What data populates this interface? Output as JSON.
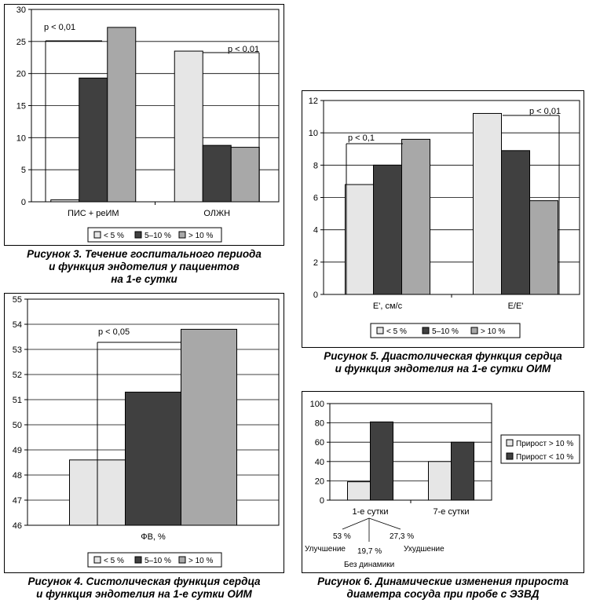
{
  "colors": {
    "light": "#e6e6e6",
    "dark": "#404040",
    "mid": "#a8a8a8",
    "axis": "#000000",
    "grid": "#000000"
  },
  "chart_data": [
    {
      "id": "fig3",
      "type": "bar",
      "categories": [
        "ПИС + реИМ",
        "ОЛЖН"
      ],
      "series": [
        {
          "name": "< 5 %",
          "values": [
            0.3,
            23.5
          ]
        },
        {
          "name": "5–10 %",
          "values": [
            19.3,
            8.8
          ]
        },
        {
          "name": "> 10 %",
          "values": [
            27.2,
            8.5
          ]
        }
      ],
      "ylim": [
        0,
        30
      ],
      "yticks": [
        0,
        5,
        10,
        15,
        20,
        25,
        30
      ],
      "annotations": [
        "p < 0,01",
        "p < 0,01"
      ],
      "grid": true,
      "legend": "bottom",
      "caption": [
        "Рисунок 3. Течение госпитального периода",
        "и функция эндотелия у пациентов",
        "на 1-е сутки"
      ]
    },
    {
      "id": "fig4",
      "type": "bar",
      "categories": [
        "ФВ, %"
      ],
      "series": [
        {
          "name": "< 5 %",
          "values": [
            48.6
          ]
        },
        {
          "name": "5–10 %",
          "values": [
            51.3
          ]
        },
        {
          "name": "> 10 %",
          "values": [
            53.8
          ]
        }
      ],
      "ylim": [
        46,
        55
      ],
      "yticks": [
        46,
        47,
        48,
        49,
        50,
        51,
        52,
        53,
        54,
        55
      ],
      "annotations": [
        "p < 0,05"
      ],
      "grid": true,
      "legend": "bottom",
      "caption": [
        "Рисунок 4. Систолическая функция сердца",
        "и функция эндотелия на 1-е сутки ОИМ"
      ]
    },
    {
      "id": "fig5",
      "type": "bar",
      "categories": [
        "E', см/с",
        "E/E'"
      ],
      "series": [
        {
          "name": "< 5 %",
          "values": [
            6.8,
            11.2
          ]
        },
        {
          "name": "5–10 %",
          "values": [
            8.0,
            8.9
          ]
        },
        {
          "name": "> 10 %",
          "values": [
            9.6,
            5.8
          ]
        }
      ],
      "ylim": [
        0,
        12
      ],
      "yticks": [
        0,
        2,
        4,
        6,
        8,
        10,
        12
      ],
      "annotations": [
        "p < 0,1",
        "p < 0,01"
      ],
      "grid": true,
      "legend": "bottom",
      "caption": [
        "Рисунок 5. Диастолическая функция сердца",
        "и функция эндотелия на 1-е сутки ОИМ"
      ]
    },
    {
      "id": "fig6",
      "type": "bar",
      "categories": [
        "1-е сутки",
        "7-е сутки"
      ],
      "series": [
        {
          "name": "Прирост > 10 %",
          "values": [
            19,
            40
          ]
        },
        {
          "name": "Прирост < 10 %",
          "values": [
            81,
            60
          ]
        }
      ],
      "ylim": [
        0,
        100
      ],
      "yticks": [
        0,
        20,
        40,
        60,
        80,
        100
      ],
      "annotations": [
        "53 %",
        "19,7 %",
        "27,3 %",
        "Улучшение",
        "Без динамики",
        "Ухудшение"
      ],
      "grid": true,
      "legend": "right",
      "caption": [
        "Рисунок 6. Динамические изменения прироста",
        "диаметра сосуда при пробе с ЭЗВД"
      ]
    }
  ]
}
